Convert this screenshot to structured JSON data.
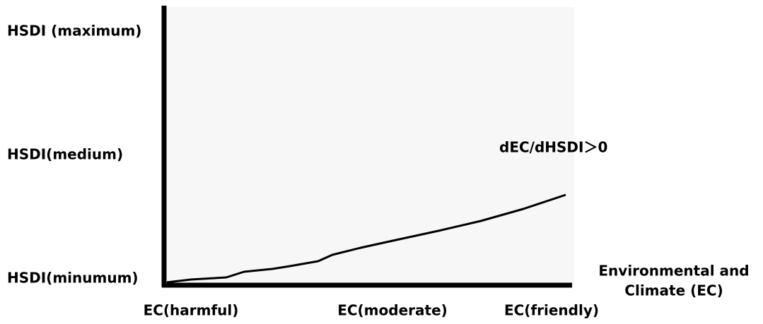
{
  "y_labels": [
    "HSDI (maximum)",
    "HSDI(medium)",
    "HSDI(minumum)"
  ],
  "x_labels": [
    "EC(harmful)",
    "EC(moderate)",
    "EC(friendly)"
  ],
  "x_axis_title": [
    "Environmental and",
    "Climate (EC)"
  ],
  "annotation": "dEC/dHSDI＞0"
}
